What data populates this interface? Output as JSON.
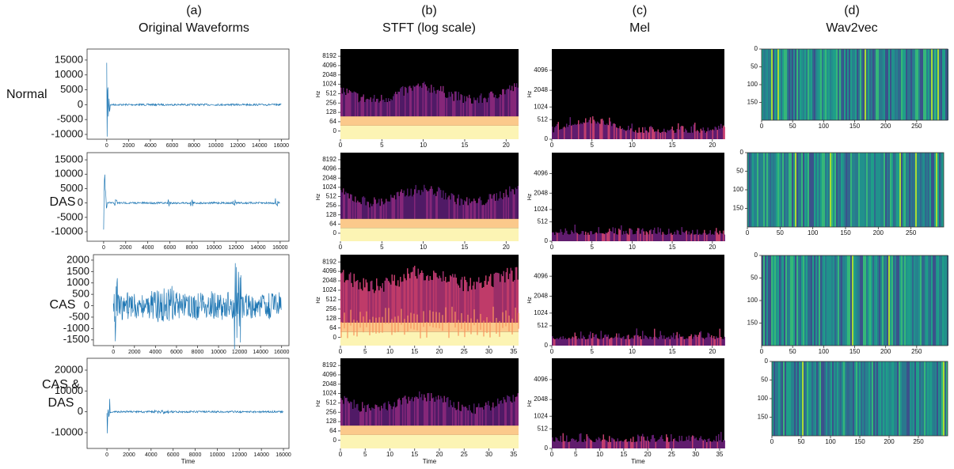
{
  "columns": [
    {
      "letter": "(a)",
      "title": "Original Waveforms"
    },
    {
      "letter": "(b)",
      "title": "STFT (log scale)"
    },
    {
      "letter": "(c)",
      "title": "Mel"
    },
    {
      "letter": "(d)",
      "title": "Wav2vec"
    }
  ],
  "rows": [
    {
      "label": [
        "Normal"
      ],
      "panels": [
        {
          "type": "waveform",
          "xlim": [
            -1800,
            16700
          ],
          "xticks": [
            0,
            2000,
            4000,
            6000,
            8000,
            10000,
            12000,
            14000,
            16000
          ],
          "ylim": [
            -11600,
            18700
          ],
          "yticks": [
            15000,
            10000,
            5000,
            0,
            -5000,
            -10000
          ]
        },
        {
          "type": "stft",
          "yscale": "log",
          "ylabel": "Hz",
          "xlim": [
            0,
            21.5
          ],
          "xticks": [
            0,
            5,
            10,
            15,
            20
          ],
          "yticks": [
            0,
            64,
            128,
            256,
            512,
            1024,
            2048,
            4096,
            8192
          ]
        },
        {
          "type": "mel",
          "yscale": "mel",
          "ylabel": "Hz",
          "xlim": [
            0,
            21.5
          ],
          "xticks": [
            0,
            5,
            10,
            15,
            20
          ],
          "ylim": [
            0,
            8000
          ],
          "yticks": [
            0,
            512,
            1024,
            2048,
            4096
          ]
        },
        {
          "type": "wav2vec",
          "xlim": [
            0,
            300
          ],
          "xticks": [
            0,
            50,
            100,
            150,
            200,
            250
          ],
          "ylim": [
            0,
            200
          ],
          "yticks": [
            0,
            50,
            100,
            150
          ]
        }
      ]
    },
    {
      "label": [
        "DAS"
      ],
      "panels": [
        {
          "type": "waveform",
          "xlim": [
            -1500,
            16800
          ],
          "xticks": [
            0,
            2000,
            4000,
            6000,
            8000,
            10000,
            12000,
            14000,
            16000
          ],
          "ylim": [
            -13300,
            17500
          ],
          "yticks": [
            15000,
            10000,
            5000,
            0,
            -5000,
            -10000
          ]
        },
        {
          "type": "stft",
          "yscale": "log",
          "ylabel": "Hz",
          "xlim": [
            0,
            21.5
          ],
          "xticks": [
            0,
            5,
            10,
            15,
            20
          ],
          "yticks": [
            0,
            64,
            128,
            256,
            512,
            1024,
            2048,
            4096,
            8192
          ]
        },
        {
          "type": "mel",
          "yscale": "mel",
          "ylabel": "Hz",
          "xlim": [
            0,
            21.5
          ],
          "xticks": [
            0,
            5,
            10,
            15,
            20
          ],
          "ylim": [
            0,
            8000
          ],
          "yticks": [
            0,
            512,
            1024,
            2048,
            4096
          ]
        },
        {
          "type": "wav2vec",
          "xlim": [
            0,
            300
          ],
          "xticks": [
            0,
            50,
            100,
            150,
            200,
            250
          ],
          "ylim": [
            0,
            200
          ],
          "yticks": [
            0,
            50,
            100,
            150
          ]
        }
      ]
    },
    {
      "label": [
        "CAS"
      ],
      "panels": [
        {
          "type": "waveform",
          "xlim": [
            -1900,
            16700
          ],
          "xticks": [
            0,
            2000,
            4000,
            6000,
            8000,
            10000,
            12000,
            14000,
            16000
          ],
          "ylim": [
            -1750,
            2240
          ],
          "yticks": [
            2000,
            1500,
            1000,
            500,
            0,
            -500,
            -1000,
            -1500
          ]
        },
        {
          "type": "stft",
          "yscale": "log",
          "ylabel": "Hz",
          "xlim": [
            0,
            36
          ],
          "xticks": [
            0,
            5,
            10,
            15,
            20,
            25,
            30,
            35
          ],
          "yticks": [
            0,
            64,
            128,
            256,
            512,
            1024,
            2048,
            4096,
            8192
          ]
        },
        {
          "type": "mel",
          "yscale": "mel",
          "ylabel": "Hz",
          "xlim": [
            0,
            21.5
          ],
          "xticks": [
            0,
            5,
            10,
            15,
            20
          ],
          "ylim": [
            0,
            8000
          ],
          "yticks": [
            0,
            512,
            1024,
            2048,
            4096
          ]
        },
        {
          "type": "wav2vec",
          "xlim": [
            0,
            300
          ],
          "xticks": [
            0,
            50,
            100,
            150,
            200,
            250
          ],
          "ylim": [
            0,
            200
          ],
          "yticks": [
            0,
            50,
            100,
            150
          ]
        }
      ]
    },
    {
      "label": [
        "CAS &",
        "DAS"
      ],
      "panels": [
        {
          "type": "waveform",
          "xlabel": "Time",
          "xlim": [
            -1800,
            16500
          ],
          "xticks": [
            0,
            2000,
            4000,
            6000,
            8000,
            10000,
            12000,
            14000,
            16000
          ],
          "ylim": [
            -17600,
            25700
          ],
          "yticks": [
            20000,
            10000,
            0,
            -10000
          ]
        },
        {
          "type": "stft",
          "yscale": "log",
          "ylabel": "Hz",
          "xlabel": "Time",
          "xlim": [
            0,
            36
          ],
          "xticks": [
            0,
            5,
            10,
            15,
            20,
            25,
            30,
            35
          ],
          "yticks": [
            0,
            64,
            128,
            256,
            512,
            1024,
            2048,
            4096,
            8192
          ]
        },
        {
          "type": "mel",
          "yscale": "mel",
          "ylabel": "Hz",
          "xlabel": "Time",
          "xlim": [
            0,
            36
          ],
          "xticks": [
            0,
            5,
            10,
            15,
            20,
            25,
            30,
            35
          ],
          "ylim": [
            0,
            8000
          ],
          "yticks": [
            0,
            512,
            1024,
            2048,
            4096
          ]
        },
        {
          "type": "wav2vec",
          "xlim": [
            0,
            300
          ],
          "xticks": [
            0,
            50,
            100,
            150,
            200,
            250
          ],
          "ylim": [
            0,
            200
          ],
          "yticks": [
            0,
            50,
            100,
            150
          ]
        }
      ]
    }
  ]
}
